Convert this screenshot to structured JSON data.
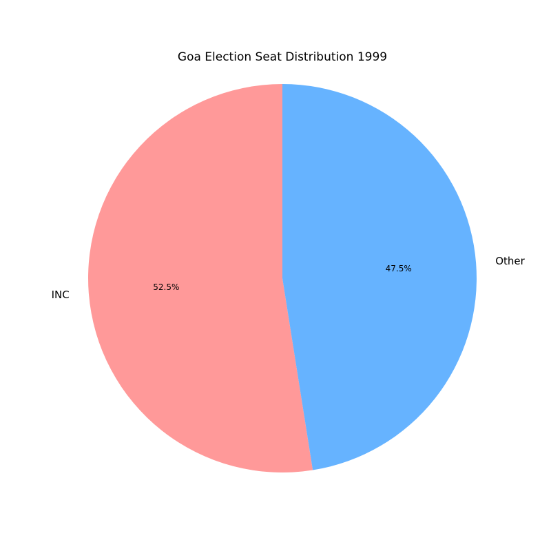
{
  "chart_data": {
    "type": "pie",
    "title": "Goa Election Seat Distribution 1999",
    "start_angle_deg": 90,
    "direction": "counterclockwise",
    "slices": [
      {
        "label": "INC",
        "value": 52.5,
        "pct_label": "52.5%",
        "color": "#ff9999"
      },
      {
        "label": "Other",
        "value": 47.5,
        "pct_label": "47.5%",
        "color": "#66b3ff"
      }
    ]
  }
}
